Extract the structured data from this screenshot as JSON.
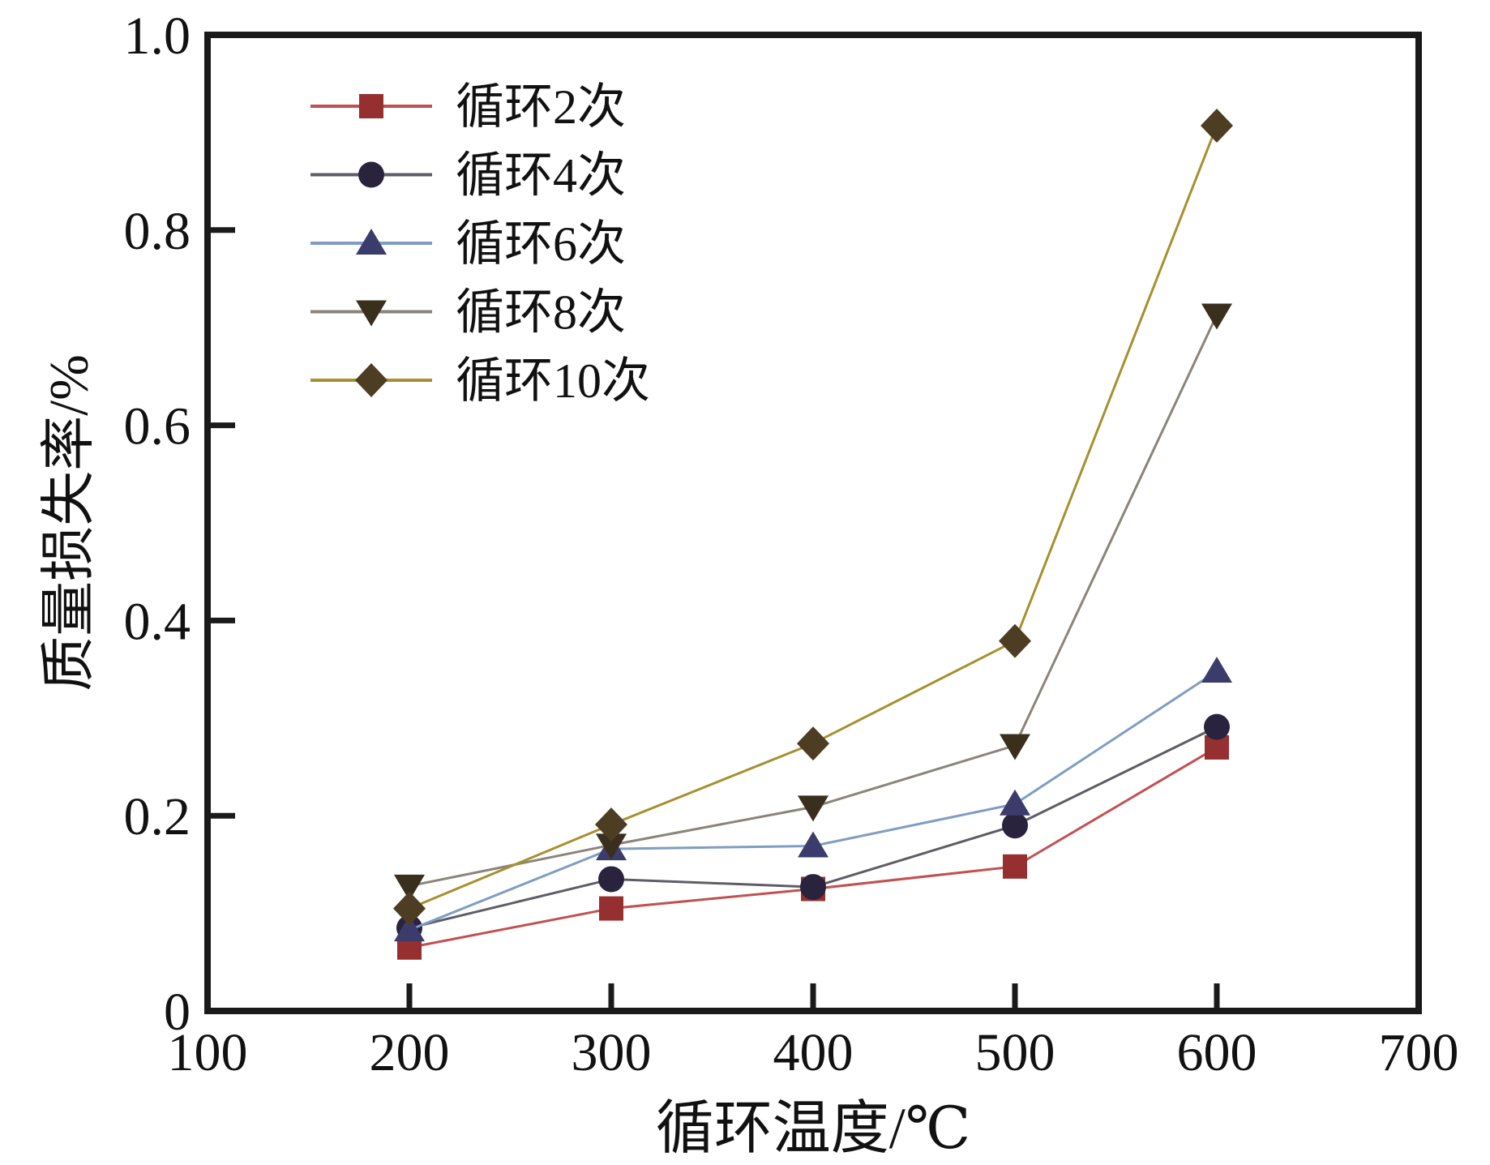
{
  "colors": {
    "background": "#ffffff",
    "axis": "#1a1a1a",
    "text": "#111111"
  },
  "chart_data": {
    "type": "line",
    "title": "",
    "xlabel": "循环温度/℃",
    "ylabel": "质量损失率/%",
    "xlim": [
      100,
      700
    ],
    "ylim": [
      0,
      1.0
    ],
    "x_ticks": [
      100,
      200,
      300,
      400,
      500,
      600,
      700
    ],
    "x_tick_labels": [
      "100",
      "200",
      "300",
      "400",
      "500",
      "600",
      "700"
    ],
    "y_ticks": [
      0,
      0.2,
      0.4,
      0.6,
      0.8,
      1.0
    ],
    "y_tick_labels": [
      "0",
      "0.2",
      "0.4",
      "0.6",
      "0.8",
      "1.0"
    ],
    "grid": false,
    "legend_position": "top-left-inside",
    "x": [
      200,
      300,
      400,
      500,
      600
    ],
    "series": [
      {
        "name": "循环2次",
        "marker": "square",
        "marker_color": "#962f2f",
        "line_color": "#c25050",
        "values": [
          0.065,
          0.105,
          0.125,
          0.148,
          0.27
        ]
      },
      {
        "name": "循环4次",
        "marker": "circle",
        "marker_color": "#29233d",
        "line_color": "#5f5c66",
        "values": [
          0.085,
          0.135,
          0.127,
          0.19,
          0.291
        ]
      },
      {
        "name": "循环6次",
        "marker": "triangle-up",
        "marker_color": "#3c3c6c",
        "line_color": "#7f9dc2",
        "values": [
          0.083,
          0.166,
          0.169,
          0.212,
          0.348
        ]
      },
      {
        "name": "循环8次",
        "marker": "triangle-down",
        "marker_color": "#3a2f1c",
        "line_color": "#8b8478",
        "values": [
          0.128,
          0.17,
          0.209,
          0.272,
          0.713
        ]
      },
      {
        "name": "循环10次",
        "marker": "diamond",
        "marker_color": "#4d3d22",
        "line_color": "#a6902f",
        "values": [
          0.105,
          0.191,
          0.274,
          0.379,
          0.907
        ]
      }
    ]
  }
}
